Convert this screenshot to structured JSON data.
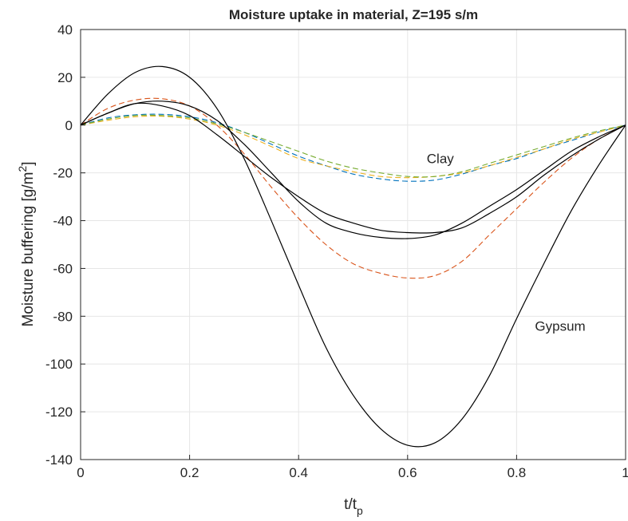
{
  "chart_data": {
    "type": "line",
    "title": "Moisture uptake in material,   Z=195 s/m",
    "xlabel_main": "t/t",
    "xlabel_sub": "p",
    "ylabel_main": "Moisture buffering [g/m",
    "ylabel_sup": "2",
    "ylabel_close": "]",
    "xlim": [
      0,
      1
    ],
    "ylim": [
      -140,
      40
    ],
    "grid": true,
    "x_ticks": [
      0,
      0.2,
      0.4,
      0.6,
      0.8,
      1
    ],
    "x_tick_labels": [
      "0",
      "0.2",
      "0.4",
      "0.6",
      "0.8",
      "1"
    ],
    "y_ticks": [
      40,
      20,
      0,
      -20,
      -40,
      -60,
      -80,
      -100,
      -120,
      -140
    ],
    "y_tick_labels": [
      "40",
      "20",
      "0",
      "-20",
      "-40",
      "-60",
      "-80",
      "-100",
      "-120",
      "-140"
    ],
    "annotations": [
      {
        "text": "Clay",
        "x": 0.66,
        "y": -16
      },
      {
        "text": "Gypsum",
        "x": 0.88,
        "y": -86
      }
    ],
    "x": [
      0,
      0.05,
      0.1,
      0.15,
      0.2,
      0.25,
      0.3,
      0.35,
      0.4,
      0.45,
      0.5,
      0.55,
      0.6,
      0.65,
      0.7,
      0.75,
      0.8,
      0.85,
      0.9,
      0.95,
      1
    ],
    "series": [
      {
        "style": "solid",
        "color": "#000000",
        "values": [
          0,
          13,
          22,
          24.5,
          20,
          7,
          -14,
          -40,
          -67,
          -93,
          -113,
          -127,
          -134,
          -133,
          -123,
          -105,
          -81,
          -58,
          -36,
          -17,
          0
        ]
      },
      {
        "style": "solid",
        "color": "#000000",
        "values": [
          0,
          5,
          9,
          8,
          4,
          -4,
          -13,
          -22,
          -30,
          -37,
          -41,
          -44,
          -45,
          -45,
          -43,
          -37,
          -30,
          -21,
          -13,
          -6,
          0
        ]
      },
      {
        "style": "solid",
        "color": "#000000",
        "values": [
          0,
          5,
          9,
          10,
          8,
          2,
          -8,
          -20,
          -32,
          -41,
          -45,
          -47,
          -47.5,
          -46,
          -41,
          -34,
          -27,
          -19,
          -11,
          -5,
          0
        ]
      },
      {
        "style": "dashed",
        "color": "#d95319",
        "values": [
          0,
          7,
          10.5,
          11,
          8,
          0,
          -12,
          -26,
          -39,
          -50,
          -58,
          -62,
          -64,
          -63,
          -57,
          -46,
          -35,
          -24,
          -14,
          -6,
          0
        ]
      },
      {
        "style": "dashed",
        "color": "#0072bd",
        "values": [
          0,
          3,
          4.3,
          4.5,
          3.5,
          1,
          -3,
          -8,
          -13,
          -17,
          -20.5,
          -22.5,
          -23.5,
          -23,
          -20.5,
          -17,
          -14,
          -10,
          -6.5,
          -3,
          0
        ]
      },
      {
        "style": "dashed",
        "color": "#edb120",
        "values": [
          0,
          2,
          3.5,
          3.7,
          2.5,
          0,
          -4,
          -9,
          -14,
          -17,
          -19.5,
          -21.5,
          -22,
          -21.5,
          -20,
          -17,
          -13.5,
          -10,
          -6,
          -3,
          0
        ]
      },
      {
        "style": "dashed",
        "color": "#77ac30",
        "values": [
          0,
          2.5,
          4,
          4,
          3,
          0.5,
          -3,
          -7,
          -11,
          -15,
          -18,
          -20,
          -21.5,
          -21.5,
          -19.5,
          -16,
          -12.5,
          -9,
          -5.5,
          -2.5,
          0
        ]
      }
    ]
  }
}
